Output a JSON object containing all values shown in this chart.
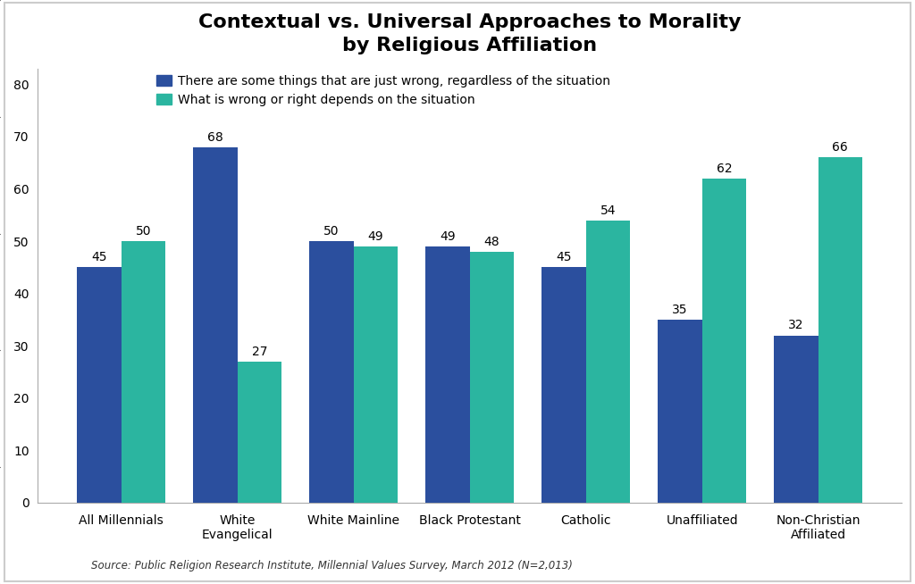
{
  "title": "Contextual vs. Universal Approaches to Morality\nby Religious Affiliation",
  "categories": [
    "All Millennials",
    "White\nEvangelical",
    "White Mainline",
    "Black Protestant",
    "Catholic",
    "Unaffiliated",
    "Non-Christian\nAffiliated"
  ],
  "universal_values": [
    45,
    68,
    50,
    49,
    45,
    35,
    32
  ],
  "contextual_values": [
    50,
    27,
    49,
    48,
    54,
    62,
    66
  ],
  "universal_color": "#2B4F9E",
  "contextual_color": "#2BB5A0",
  "universal_label": "There are some things that are just wrong, regardless of the situation",
  "contextual_label": "What is wrong or right depends on the situation",
  "ylabel_ticks": [
    0,
    10,
    20,
    30,
    40,
    50,
    60,
    70,
    80
  ],
  "ylim": [
    0,
    83
  ],
  "source_text": "Source: Public Religion Research Institute, Millennial Values Survey, March 2012 (N=2,013)",
  "background_color": "#FFFFFF",
  "border_color": "#CCCCCC",
  "bar_width": 0.38,
  "title_fontsize": 16,
  "legend_fontsize": 10,
  "tick_fontsize": 10,
  "label_fontsize": 10,
  "source_fontsize": 8.5
}
